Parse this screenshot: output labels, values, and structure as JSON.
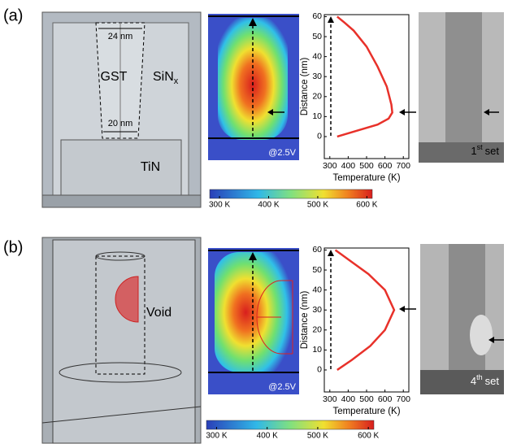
{
  "panels": [
    {
      "label": "(a)",
      "schematic": {
        "top_width": "24 nm",
        "bottom_width": "20 nm",
        "core": "GST",
        "cladding": {
          "base": "SiN",
          "sub": "x"
        },
        "electrode": "TiN"
      },
      "heatmap_bias": "@2.5V",
      "tem": {
        "base": "1",
        "sup": "st",
        "text": "set"
      },
      "colorbar": {
        "lim": [
          280,
          611
        ],
        "ticks": [
          {
            "value": 300,
            "label": "300 K"
          },
          {
            "value": 400,
            "label": "400 K"
          },
          {
            "value": 500,
            "label": "500 K"
          },
          {
            "value": 600,
            "label": "600 K"
          }
        ]
      }
    },
    {
      "label": "(b)",
      "schematic": {
        "void": "Void"
      },
      "heatmap_bias": "@2.5V",
      "tem": {
        "base": "4",
        "sup": "th",
        "text": "set"
      },
      "colorbar": {
        "lim": [
          280,
          611
        ],
        "ticks": [
          {
            "value": 300,
            "label": "300 K"
          },
          {
            "value": 400,
            "label": "400 K"
          },
          {
            "value": 500,
            "label": "500 K"
          },
          {
            "value": 600,
            "label": "600 K"
          }
        ]
      }
    }
  ],
  "chart_data": [
    {
      "type": "line",
      "xlabel": "Temperature (K)",
      "ylabel": "Distance (nm)",
      "color": "#e8312a",
      "x": [
        340,
        450,
        560,
        620,
        640,
        635,
        610,
        560,
        500,
        430,
        380,
        340
      ],
      "values": [
        0,
        3,
        6,
        9,
        12,
        16,
        25,
        35,
        45,
        53,
        57,
        60
      ],
      "xlim": [
        270,
        730
      ],
      "ylim": [
        -11,
        61
      ],
      "xticks": [
        300,
        400,
        500,
        600,
        700
      ],
      "yticks": [
        0,
        10,
        20,
        30,
        40,
        50,
        60
      ]
    },
    {
      "type": "line",
      "xlabel": "Temperature (K)",
      "ylabel": "Distance (nm)",
      "color": "#e8312a",
      "x": [
        340,
        420,
        520,
        600,
        650,
        600,
        510,
        420,
        360,
        330
      ],
      "values": [
        0,
        5,
        12,
        20,
        30,
        40,
        48,
        54,
        58,
        60
      ],
      "xlim": [
        270,
        730
      ],
      "ylim": [
        -11,
        61
      ],
      "xticks": [
        300,
        400,
        500,
        600,
        700
      ],
      "yticks": [
        0,
        10,
        20,
        30,
        40,
        50,
        60
      ]
    }
  ]
}
